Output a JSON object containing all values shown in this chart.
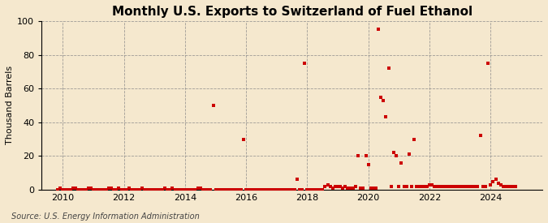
{
  "title": "Monthly U.S. Exports to Switzerland of Fuel Ethanol",
  "ylabel": "Thousand Barrels",
  "source": "Source: U.S. Energy Information Administration",
  "background_color": "#f5e8ce",
  "plot_bg_color": "#f5e8ce",
  "marker_color": "#cc0000",
  "ylim": [
    0,
    100
  ],
  "yticks": [
    0,
    20,
    40,
    60,
    80,
    100
  ],
  "xlim_start": 2009.3,
  "xlim_end": 2025.7,
  "xticks": [
    2010,
    2012,
    2014,
    2016,
    2018,
    2020,
    2022,
    2024
  ],
  "title_fontsize": 11,
  "axis_fontsize": 8,
  "source_fontsize": 7,
  "data_points": [
    [
      2009.83,
      0
    ],
    [
      2009.92,
      1
    ],
    [
      2010.0,
      0
    ],
    [
      2010.08,
      0
    ],
    [
      2010.17,
      0
    ],
    [
      2010.25,
      0
    ],
    [
      2010.33,
      1
    ],
    [
      2010.42,
      1
    ],
    [
      2010.5,
      0
    ],
    [
      2010.58,
      0
    ],
    [
      2010.67,
      0
    ],
    [
      2010.75,
      0
    ],
    [
      2010.83,
      1
    ],
    [
      2010.92,
      1
    ],
    [
      2011.0,
      0
    ],
    [
      2011.08,
      0
    ],
    [
      2011.17,
      0
    ],
    [
      2011.25,
      0
    ],
    [
      2011.33,
      0
    ],
    [
      2011.42,
      0
    ],
    [
      2011.5,
      1
    ],
    [
      2011.58,
      1
    ],
    [
      2011.67,
      0
    ],
    [
      2011.75,
      0
    ],
    [
      2011.83,
      1
    ],
    [
      2011.92,
      0
    ],
    [
      2012.0,
      0
    ],
    [
      2012.08,
      0
    ],
    [
      2012.17,
      1
    ],
    [
      2012.25,
      0
    ],
    [
      2012.33,
      0
    ],
    [
      2012.42,
      0
    ],
    [
      2012.5,
      0
    ],
    [
      2012.58,
      1
    ],
    [
      2012.67,
      0
    ],
    [
      2012.75,
      0
    ],
    [
      2012.83,
      0
    ],
    [
      2012.92,
      0
    ],
    [
      2013.0,
      0
    ],
    [
      2013.08,
      0
    ],
    [
      2013.17,
      0
    ],
    [
      2013.25,
      0
    ],
    [
      2013.33,
      1
    ],
    [
      2013.42,
      0
    ],
    [
      2013.5,
      0
    ],
    [
      2013.58,
      1
    ],
    [
      2013.67,
      0
    ],
    [
      2013.75,
      0
    ],
    [
      2013.83,
      0
    ],
    [
      2013.92,
      0
    ],
    [
      2014.0,
      0
    ],
    [
      2014.08,
      0
    ],
    [
      2014.17,
      0
    ],
    [
      2014.25,
      0
    ],
    [
      2014.33,
      0
    ],
    [
      2014.42,
      1
    ],
    [
      2014.5,
      1
    ],
    [
      2014.58,
      0
    ],
    [
      2014.67,
      0
    ],
    [
      2014.75,
      0
    ],
    [
      2014.83,
      0
    ],
    [
      2014.92,
      50
    ],
    [
      2015.0,
      0
    ],
    [
      2015.08,
      0
    ],
    [
      2015.17,
      0
    ],
    [
      2015.25,
      0
    ],
    [
      2015.33,
      0
    ],
    [
      2015.42,
      0
    ],
    [
      2015.5,
      0
    ],
    [
      2015.58,
      0
    ],
    [
      2015.67,
      0
    ],
    [
      2015.75,
      0
    ],
    [
      2015.83,
      0
    ],
    [
      2015.92,
      30
    ],
    [
      2016.0,
      0
    ],
    [
      2016.08,
      0
    ],
    [
      2016.17,
      0
    ],
    [
      2016.25,
      0
    ],
    [
      2016.33,
      0
    ],
    [
      2016.42,
      0
    ],
    [
      2016.5,
      0
    ],
    [
      2016.58,
      0
    ],
    [
      2016.67,
      0
    ],
    [
      2016.75,
      0
    ],
    [
      2016.83,
      0
    ],
    [
      2016.92,
      0
    ],
    [
      2017.0,
      0
    ],
    [
      2017.08,
      0
    ],
    [
      2017.17,
      0
    ],
    [
      2017.25,
      0
    ],
    [
      2017.33,
      0
    ],
    [
      2017.42,
      0
    ],
    [
      2017.5,
      0
    ],
    [
      2017.58,
      0
    ],
    [
      2017.67,
      6
    ],
    [
      2017.75,
      0
    ],
    [
      2017.83,
      0
    ],
    [
      2017.92,
      75
    ],
    [
      2018.0,
      0
    ],
    [
      2018.08,
      0
    ],
    [
      2018.17,
      0
    ],
    [
      2018.25,
      0
    ],
    [
      2018.33,
      0
    ],
    [
      2018.42,
      0
    ],
    [
      2018.5,
      0
    ],
    [
      2018.58,
      2
    ],
    [
      2018.67,
      3
    ],
    [
      2018.75,
      2
    ],
    [
      2018.83,
      1
    ],
    [
      2018.92,
      2
    ],
    [
      2019.0,
      2
    ],
    [
      2019.08,
      2
    ],
    [
      2019.17,
      1
    ],
    [
      2019.25,
      2
    ],
    [
      2019.33,
      1
    ],
    [
      2019.42,
      1
    ],
    [
      2019.5,
      1
    ],
    [
      2019.58,
      2
    ],
    [
      2019.67,
      20
    ],
    [
      2019.75,
      1
    ],
    [
      2019.83,
      1
    ],
    [
      2019.92,
      20
    ],
    [
      2020.0,
      15
    ],
    [
      2020.08,
      1
    ],
    [
      2020.17,
      1
    ],
    [
      2020.25,
      1
    ],
    [
      2020.33,
      95
    ],
    [
      2020.42,
      55
    ],
    [
      2020.5,
      53
    ],
    [
      2020.58,
      43
    ],
    [
      2020.67,
      72
    ],
    [
      2020.75,
      2
    ],
    [
      2020.83,
      22
    ],
    [
      2020.92,
      20
    ],
    [
      2021.0,
      2
    ],
    [
      2021.08,
      16
    ],
    [
      2021.17,
      2
    ],
    [
      2021.25,
      2
    ],
    [
      2021.33,
      21
    ],
    [
      2021.42,
      2
    ],
    [
      2021.5,
      30
    ],
    [
      2021.58,
      2
    ],
    [
      2021.67,
      2
    ],
    [
      2021.75,
      2
    ],
    [
      2021.83,
      2
    ],
    [
      2021.92,
      2
    ],
    [
      2022.0,
      3
    ],
    [
      2022.08,
      3
    ],
    [
      2022.17,
      2
    ],
    [
      2022.25,
      2
    ],
    [
      2022.33,
      2
    ],
    [
      2022.42,
      2
    ],
    [
      2022.5,
      2
    ],
    [
      2022.58,
      2
    ],
    [
      2022.67,
      2
    ],
    [
      2022.75,
      2
    ],
    [
      2022.83,
      2
    ],
    [
      2022.92,
      2
    ],
    [
      2023.0,
      2
    ],
    [
      2023.08,
      2
    ],
    [
      2023.17,
      2
    ],
    [
      2023.25,
      2
    ],
    [
      2023.33,
      2
    ],
    [
      2023.42,
      2
    ],
    [
      2023.5,
      2
    ],
    [
      2023.58,
      2
    ],
    [
      2023.67,
      32
    ],
    [
      2023.75,
      2
    ],
    [
      2023.83,
      2
    ],
    [
      2023.92,
      75
    ],
    [
      2024.0,
      3
    ],
    [
      2024.08,
      5
    ],
    [
      2024.17,
      6
    ],
    [
      2024.25,
      4
    ],
    [
      2024.33,
      3
    ],
    [
      2024.42,
      2
    ],
    [
      2024.5,
      2
    ],
    [
      2024.58,
      2
    ],
    [
      2024.67,
      2
    ],
    [
      2024.75,
      2
    ],
    [
      2024.83,
      2
    ]
  ]
}
